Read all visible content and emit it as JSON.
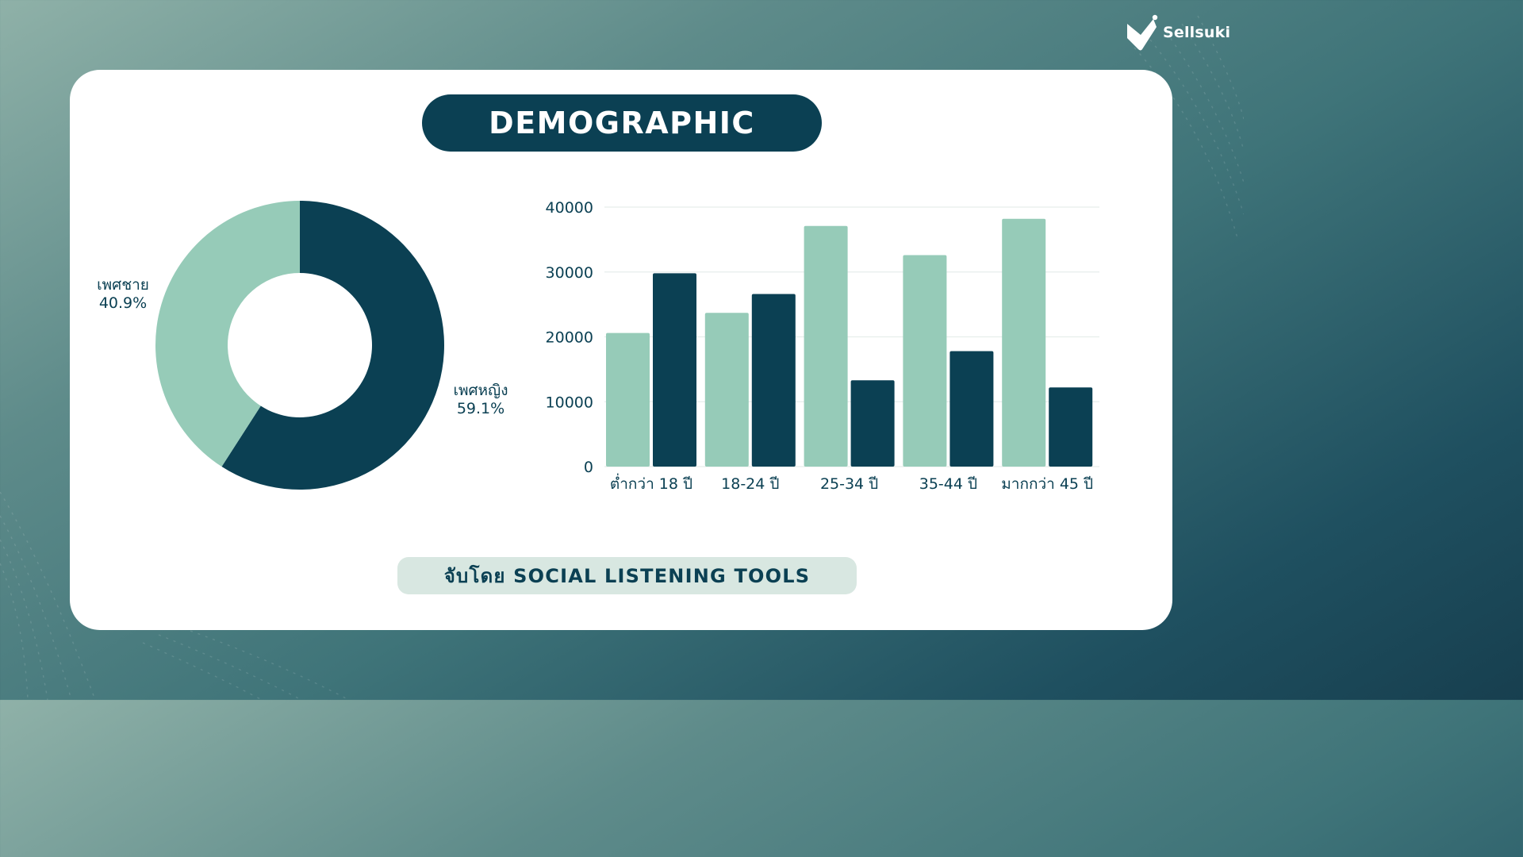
{
  "brand": {
    "name": "Sellsuki"
  },
  "header": {
    "title": "DEMOGRAPHIC"
  },
  "caption": {
    "text": "จับโดย SOCIAL LISTENING TOOLS"
  },
  "colors": {
    "dark": "#0b4053",
    "light": "#96cbb8",
    "grid": "#e6eeeb",
    "text": "#0b4053"
  },
  "chart_data": [
    {
      "type": "pie",
      "donut": true,
      "slices": [
        {
          "label": "เพศหญิง",
          "value": 59.1,
          "display": "59.1%",
          "color": "#0b4053"
        },
        {
          "label": "เพศชาย",
          "value": 40.9,
          "display": "40.9%",
          "color": "#96cbb8"
        }
      ]
    },
    {
      "type": "bar",
      "categories": [
        "ต่ำกว่า 18 ปี",
        "18-24 ปี",
        "25-34 ปี",
        "35-44 ปี",
        "มากกว่า 45 ปี"
      ],
      "series": [
        {
          "color": "#96cbb8",
          "values": [
            20600,
            23700,
            37100,
            32600,
            38200
          ]
        },
        {
          "color": "#0b4053",
          "values": [
            29800,
            26600,
            13300,
            17800,
            12200
          ]
        }
      ],
      "ylim": [
        0,
        40000
      ],
      "yticks": [
        "0",
        "10000",
        "20000",
        "30000",
        "40000"
      ],
      "grid": true
    }
  ]
}
